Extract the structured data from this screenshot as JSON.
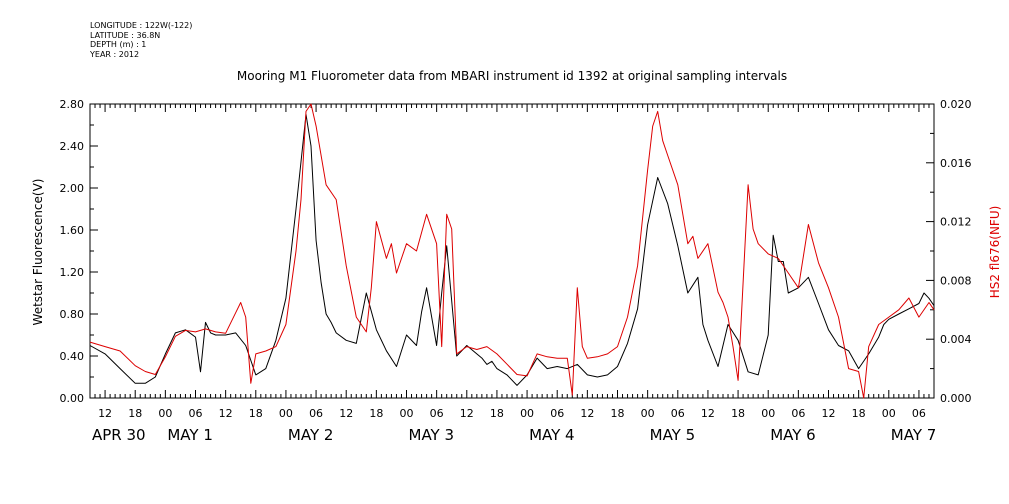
{
  "header": {
    "longitude": "LONGITUDE : 122W(-122)",
    "latitude": "LATITUDE : 36.8N",
    "depth": "DEPTH (m) : 1",
    "year": "YEAR : 2012"
  },
  "chart_data": {
    "type": "line",
    "title": "Mooring M1 Fluorometer data from MBARI instrument id 1392 at original sampling intervals",
    "ylabel_left": "Wetstar Fluorescence(V)",
    "ylabel_right": "HS2 fl676(NFU)",
    "ylim_left": [
      0,
      2.8
    ],
    "ylim_right": [
      0,
      0.02
    ],
    "yticks_left": [
      "0.00",
      "0.40",
      "0.80",
      "1.20",
      "1.60",
      "2.00",
      "2.40",
      "2.80"
    ],
    "yticks_right": [
      "0.000",
      "0.004",
      "0.008",
      "0.012",
      "0.016",
      "0.020"
    ],
    "x_unit": "hours since APR 30 00:00, 2012",
    "xlim": [
      9,
      177
    ],
    "hour_ticks": [
      "12",
      "18",
      "00",
      "06",
      "12",
      "18",
      "00",
      "06",
      "12",
      "18",
      "00",
      "06",
      "12",
      "18",
      "00",
      "06",
      "12",
      "18",
      "00",
      "06",
      "12",
      "18",
      "00",
      "06",
      "12",
      "18",
      "00",
      "06"
    ],
    "day_labels": [
      "APR 30",
      "MAY  1",
      "MAY  2",
      "MAY  3",
      "MAY  4",
      "MAY  5",
      "MAY  6",
      "MAY  7"
    ],
    "grid": false,
    "colors": {
      "wetstar": "#000000",
      "hs2": "#dd0000"
    },
    "series": [
      {
        "axis": "left",
        "x": [
          9,
          12,
          15,
          18,
          20,
          22,
          24,
          26,
          28,
          30,
          31,
          32,
          33,
          34,
          36,
          38,
          40,
          42,
          44,
          46,
          48,
          50,
          52,
          53,
          54,
          55,
          56,
          57,
          58,
          60,
          62,
          64,
          66,
          68,
          70,
          72,
          74,
          75,
          76,
          78,
          79,
          80,
          82,
          84,
          86,
          87,
          88,
          89,
          90,
          92,
          94,
          96,
          98,
          100,
          102,
          104,
          106,
          108,
          110,
          112,
          114,
          116,
          118,
          120,
          122,
          124,
          126,
          128,
          130,
          131,
          132,
          134,
          136,
          138,
          140,
          142,
          144,
          145,
          146,
          147,
          148,
          150,
          152,
          154,
          156,
          158,
          160,
          162,
          164,
          166,
          167,
          168,
          170,
          172,
          174,
          175,
          176,
          177
        ],
        "values": [
          0.5,
          0.42,
          0.28,
          0.14,
          0.14,
          0.2,
          0.42,
          0.62,
          0.65,
          0.58,
          0.25,
          0.72,
          0.62,
          0.6,
          0.6,
          0.62,
          0.5,
          0.22,
          0.28,
          0.55,
          0.95,
          1.8,
          2.7,
          2.4,
          1.5,
          1.1,
          0.8,
          0.72,
          0.62,
          0.55,
          0.52,
          1.0,
          0.65,
          0.45,
          0.3,
          0.6,
          0.5,
          0.82,
          1.05,
          0.5,
          1.0,
          1.45,
          0.4,
          0.5,
          0.42,
          0.38,
          0.32,
          0.35,
          0.28,
          0.22,
          0.12,
          0.22,
          0.38,
          0.28,
          0.3,
          0.28,
          0.32,
          0.22,
          0.2,
          0.22,
          0.3,
          0.52,
          0.85,
          1.65,
          2.1,
          1.85,
          1.45,
          1.0,
          1.15,
          0.7,
          0.55,
          0.3,
          0.7,
          0.55,
          0.25,
          0.22,
          0.6,
          1.55,
          1.3,
          1.3,
          1.0,
          1.05,
          1.15,
          0.9,
          0.65,
          0.5,
          0.45,
          0.28,
          0.42,
          0.58,
          0.7,
          0.75,
          0.8,
          0.85,
          0.9,
          1.0,
          0.95,
          0.88
        ]
      },
      {
        "axis": "right",
        "x": [
          9,
          12,
          15,
          18,
          20,
          22,
          24,
          26,
          28,
          30,
          32,
          34,
          36,
          38,
          39,
          40,
          41,
          42,
          44,
          46,
          48,
          50,
          51,
          52,
          53,
          54,
          56,
          58,
          60,
          62,
          64,
          65,
          66,
          68,
          69,
          70,
          72,
          74,
          76,
          78,
          79,
          80,
          81,
          82,
          84,
          86,
          88,
          90,
          92,
          94,
          96,
          98,
          100,
          102,
          104,
          105,
          106,
          107,
          108,
          110,
          112,
          114,
          116,
          118,
          120,
          121,
          122,
          123,
          124,
          126,
          128,
          129,
          130,
          132,
          134,
          135,
          136,
          137,
          138,
          140,
          141,
          142,
          144,
          146,
          148,
          150,
          152,
          154,
          156,
          158,
          160,
          162,
          163,
          164,
          166,
          168,
          170,
          172,
          174,
          176,
          177
        ],
        "values": [
          0.0038,
          0.0035,
          0.0032,
          0.0022,
          0.0018,
          0.0016,
          0.0028,
          0.0042,
          0.0046,
          0.0045,
          0.0047,
          0.0045,
          0.0044,
          0.0058,
          0.0065,
          0.0055,
          0.001,
          0.003,
          0.0032,
          0.0035,
          0.005,
          0.01,
          0.0135,
          0.0195,
          0.02,
          0.0185,
          0.0145,
          0.0135,
          0.009,
          0.0055,
          0.0045,
          0.0075,
          0.012,
          0.0095,
          0.0105,
          0.0085,
          0.0105,
          0.01,
          0.0125,
          0.0105,
          0.0035,
          0.0125,
          0.0115,
          0.003,
          0.0035,
          0.0033,
          0.0035,
          0.003,
          0.0023,
          0.0016,
          0.0015,
          0.003,
          0.0028,
          0.0027,
          0.0027,
          0.0002,
          0.0075,
          0.0035,
          0.0027,
          0.0028,
          0.003,
          0.0035,
          0.0055,
          0.009,
          0.0155,
          0.0185,
          0.0195,
          0.0175,
          0.0165,
          0.0145,
          0.0105,
          0.011,
          0.0095,
          0.0105,
          0.0072,
          0.0065,
          0.0055,
          0.0035,
          0.0012,
          0.0145,
          0.0115,
          0.0105,
          0.0098,
          0.0095,
          0.0085,
          0.0075,
          0.0118,
          0.0092,
          0.0075,
          0.0055,
          0.002,
          0.0018,
          0.0,
          0.0035,
          0.005,
          0.0055,
          0.006,
          0.0068,
          0.0055,
          0.0065,
          0.006
        ]
      }
    ]
  }
}
